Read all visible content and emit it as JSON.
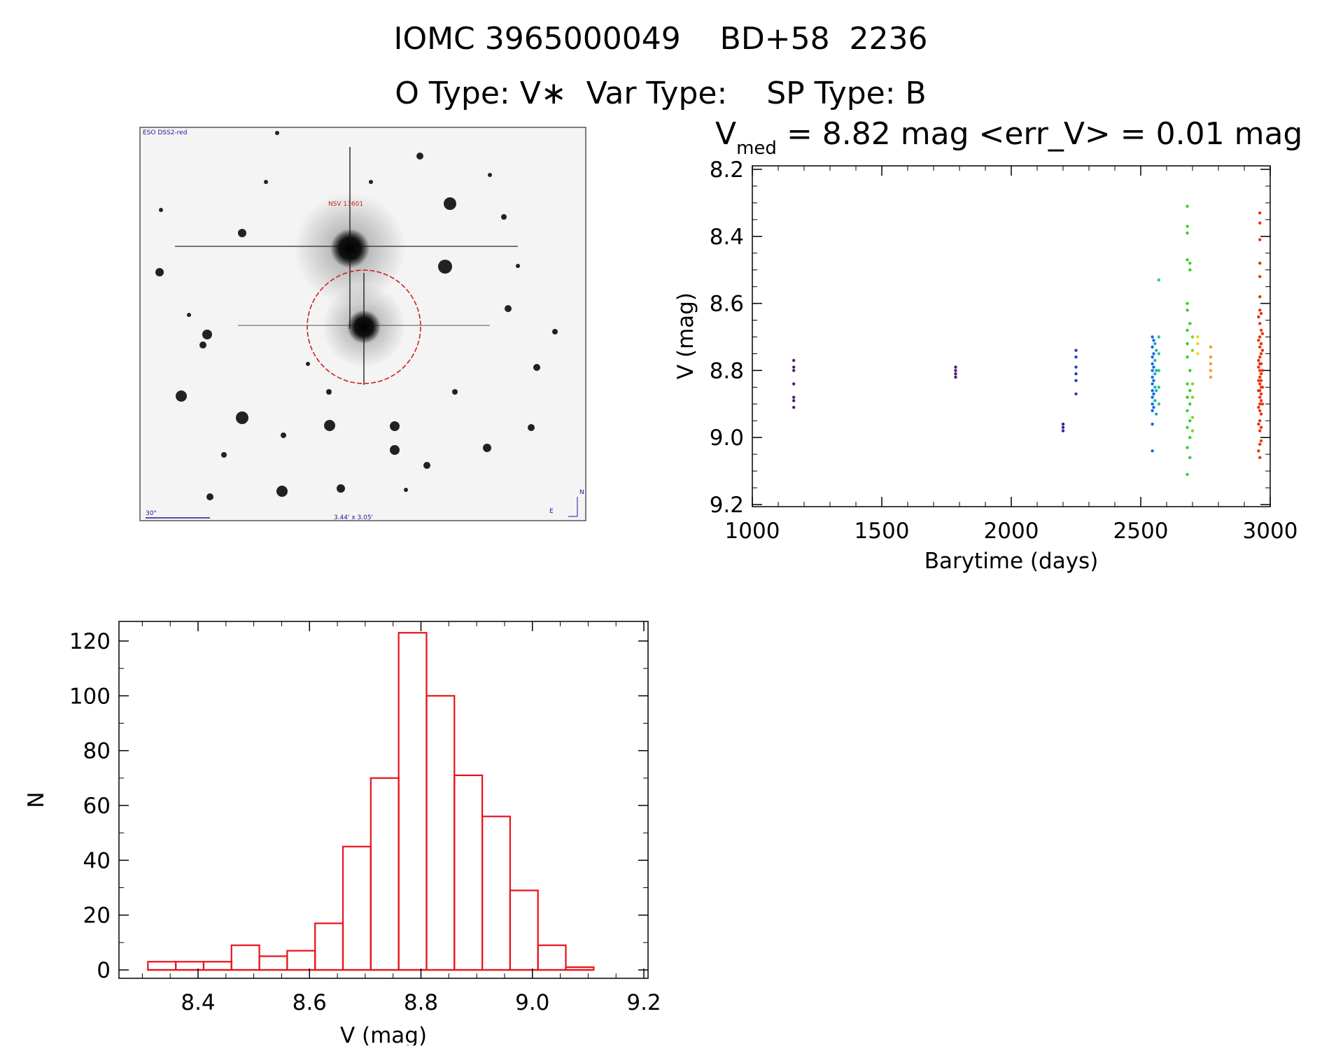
{
  "header": {
    "title_line1": "IOMC 3965000049    BD+58  2236",
    "title_line2": "O Type: V∗  Var Type:    SP Type: B"
  },
  "finder": {
    "label_top_left": "ESO DSS2-red",
    "label_star": "NSV 13601",
    "label_scale": "30\"",
    "label_fov": "3.44' x 3.05'",
    "compass_n": "N",
    "compass_e": "E"
  },
  "chart_data": [
    {
      "type": "scatter",
      "title_v": "V",
      "title_sub": "med",
      "title_rest": "= 8.82 mag <err_V> = 0.01 mag",
      "xlabel": "Barytime (days)",
      "ylabel": "V (mag)",
      "xlim": [
        1000,
        3000
      ],
      "ylim": [
        9.2,
        8.2
      ],
      "y_inverted": true,
      "xticks": [
        1000,
        1500,
        2000,
        2500,
        3000
      ],
      "yticks": [
        "8.2",
        "8.4",
        "8.6",
        "8.8",
        "9.0",
        "9.2"
      ],
      "series": [
        {
          "color": "#5b1a7a",
          "points": [
            [
              1160,
              8.77
            ],
            [
              1160,
              8.79
            ],
            [
              1160,
              8.8
            ],
            [
              1160,
              8.84
            ],
            [
              1160,
              8.88
            ],
            [
              1160,
              8.89
            ],
            [
              1160,
              8.91
            ]
          ]
        },
        {
          "color": "#5b1a7a",
          "points": [
            [
              1785,
              8.79
            ],
            [
              1785,
              8.8
            ],
            [
              1785,
              8.81
            ],
            [
              1785,
              8.82
            ]
          ]
        },
        {
          "color": "#3b1fa8",
          "points": [
            [
              2200,
              8.96
            ],
            [
              2200,
              8.97
            ],
            [
              2200,
              8.98
            ]
          ]
        },
        {
          "color": "#2b3ccc",
          "points": [
            [
              2250,
              8.74
            ],
            [
              2250,
              8.76
            ],
            [
              2250,
              8.79
            ],
            [
              2250,
              8.81
            ],
            [
              2250,
              8.83
            ],
            [
              2250,
              8.87
            ]
          ]
        },
        {
          "color": "#1a6ae0",
          "points": [
            [
              2545,
              8.7
            ],
            [
              2545,
              8.73
            ],
            [
              2545,
              8.76
            ],
            [
              2545,
              8.78
            ],
            [
              2545,
              8.8
            ],
            [
              2545,
              8.82
            ],
            [
              2545,
              8.84
            ],
            [
              2545,
              8.86
            ],
            [
              2545,
              8.88
            ],
            [
              2545,
              8.9
            ],
            [
              2545,
              8.92
            ],
            [
              2545,
              8.96
            ],
            [
              2545,
              9.04
            ],
            [
              2550,
              8.71
            ],
            [
              2550,
              8.75
            ],
            [
              2550,
              8.79
            ],
            [
              2550,
              8.83
            ],
            [
              2550,
              8.87
            ],
            [
              2550,
              8.91
            ]
          ]
        },
        {
          "color": "#1ab0c8",
          "points": [
            [
              2555,
              8.72
            ],
            [
              2555,
              8.77
            ],
            [
              2555,
              8.81
            ],
            [
              2555,
              8.85
            ],
            [
              2555,
              8.89
            ],
            [
              2560,
              8.74
            ],
            [
              2560,
              8.8
            ],
            [
              2560,
              8.86
            ],
            [
              2560,
              8.93
            ]
          ]
        },
        {
          "color": "#22c98a",
          "points": [
            [
              2570,
              8.53
            ],
            [
              2570,
              8.7
            ],
            [
              2570,
              8.75
            ],
            [
              2570,
              8.8
            ],
            [
              2570,
              8.85
            ],
            [
              2570,
              8.9
            ]
          ]
        },
        {
          "color": "#33d12a",
          "points": [
            [
              2680,
              8.31
            ],
            [
              2680,
              8.37
            ],
            [
              2680,
              8.39
            ],
            [
              2680,
              8.47
            ],
            [
              2680,
              8.6
            ],
            [
              2680,
              8.62
            ],
            [
              2680,
              8.68
            ],
            [
              2680,
              8.72
            ],
            [
              2680,
              8.76
            ],
            [
              2680,
              8.84
            ],
            [
              2680,
              8.88
            ],
            [
              2680,
              8.92
            ],
            [
              2680,
              8.97
            ],
            [
              2680,
              9.03
            ],
            [
              2680,
              9.11
            ],
            [
              2690,
              8.48
            ],
            [
              2690,
              8.5
            ],
            [
              2690,
              8.66
            ],
            [
              2690,
              8.8
            ],
            [
              2690,
              8.86
            ],
            [
              2690,
              8.9
            ],
            [
              2690,
              8.95
            ],
            [
              2690,
              9.0
            ],
            [
              2690,
              9.06
            ]
          ]
        },
        {
          "color": "#8ad11a",
          "points": [
            [
              2700,
              8.7
            ],
            [
              2700,
              8.74
            ],
            [
              2700,
              8.84
            ],
            [
              2700,
              8.88
            ],
            [
              2700,
              8.94
            ],
            [
              2700,
              8.98
            ]
          ]
        },
        {
          "color": "#e8d81a",
          "points": [
            [
              2720,
              8.7
            ],
            [
              2720,
              8.72
            ],
            [
              2720,
              8.75
            ]
          ]
        },
        {
          "color": "#f0a020",
          "points": [
            [
              2770,
              8.73
            ],
            [
              2770,
              8.76
            ],
            [
              2770,
              8.78
            ],
            [
              2770,
              8.8
            ],
            [
              2770,
              8.82
            ]
          ]
        },
        {
          "color": "#e8340f",
          "points": [
            [
              2960,
              8.33
            ],
            [
              2960,
              8.36
            ],
            [
              2960,
              8.41
            ],
            [
              2960,
              8.48
            ],
            [
              2960,
              8.52
            ],
            [
              2960,
              8.58
            ],
            [
              2960,
              8.62
            ],
            [
              2960,
              8.66
            ],
            [
              2960,
              8.7
            ],
            [
              2960,
              8.73
            ],
            [
              2960,
              8.76
            ],
            [
              2960,
              8.78
            ],
            [
              2960,
              8.8
            ],
            [
              2960,
              8.82
            ],
            [
              2960,
              8.84
            ],
            [
              2960,
              8.86
            ],
            [
              2960,
              8.88
            ],
            [
              2960,
              8.9
            ],
            [
              2960,
              8.92
            ],
            [
              2960,
              8.95
            ],
            [
              2960,
              8.98
            ],
            [
              2960,
              9.02
            ],
            [
              2960,
              9.06
            ],
            [
              2965,
              8.63
            ],
            [
              2965,
              8.68
            ],
            [
              2965,
              8.72
            ],
            [
              2965,
              8.75
            ],
            [
              2965,
              8.78
            ],
            [
              2965,
              8.81
            ],
            [
              2965,
              8.83
            ],
            [
              2965,
              8.85
            ],
            [
              2965,
              8.87
            ],
            [
              2965,
              8.89
            ],
            [
              2965,
              8.93
            ],
            [
              2965,
              8.97
            ],
            [
              2965,
              9.01
            ],
            [
              2955,
              8.64
            ],
            [
              2955,
              8.71
            ],
            [
              2955,
              8.77
            ],
            [
              2955,
              8.79
            ],
            [
              2955,
              8.83
            ],
            [
              2955,
              8.86
            ],
            [
              2955,
              8.91
            ],
            [
              2955,
              8.96
            ],
            [
              2955,
              9.04
            ],
            [
              2970,
              8.69
            ],
            [
              2970,
              8.74
            ],
            [
              2970,
              8.8
            ],
            [
              2970,
              8.85
            ],
            [
              2970,
              8.9
            ]
          ]
        }
      ]
    },
    {
      "type": "bar",
      "xlabel": "V (mag)",
      "ylabel": "N",
      "xlim": [
        8.3,
        9.2
      ],
      "ylim": [
        0,
        130
      ],
      "xticks": [
        "8.4",
        "8.6",
        "8.8",
        "9.0",
        "9.2"
      ],
      "yticks": [
        "0",
        "20",
        "40",
        "60",
        "80",
        "100",
        "120"
      ],
      "bin_edges": [
        8.31,
        8.36,
        8.41,
        8.46,
        8.51,
        8.56,
        8.61,
        8.66,
        8.71,
        8.76,
        8.81,
        8.86,
        8.91,
        8.96,
        9.01,
        9.06,
        9.11
      ],
      "values": [
        3,
        3,
        3,
        9,
        5,
        7,
        17,
        45,
        70,
        123,
        100,
        71,
        56,
        29,
        9,
        1
      ],
      "bar_color": "#e8121a"
    }
  ]
}
